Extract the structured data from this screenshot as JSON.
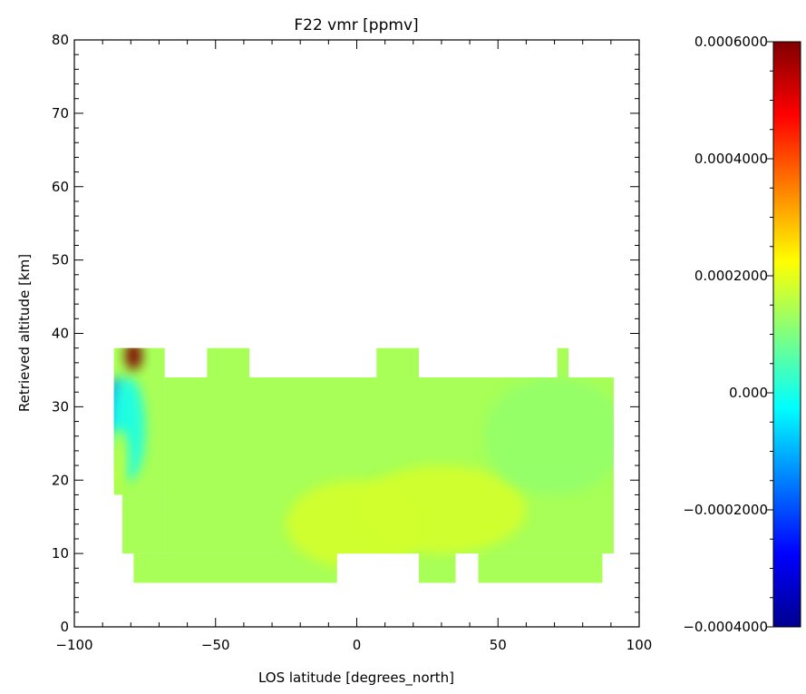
{
  "chart_data": {
    "type": "heatmap",
    "title": "F22 vmr [ppmv]",
    "xlabel": "LOS latitude [degrees_north]",
    "ylabel": "Retrieved altitude [km]",
    "xlim": [
      -100,
      100
    ],
    "ylim": [
      0,
      80
    ],
    "x_ticks": [
      -100,
      -50,
      0,
      50,
      100
    ],
    "y_ticks": [
      0,
      10,
      20,
      30,
      40,
      50,
      60,
      70,
      80
    ],
    "x_tick_labels": [
      "−100",
      "−50",
      "0",
      "50",
      "100"
    ],
    "y_tick_labels": [
      "0",
      "10",
      "20",
      "30",
      "40",
      "50",
      "60",
      "70",
      "80"
    ],
    "colorbar": {
      "range": [
        -0.0004,
        0.0006
      ],
      "ticks": [
        -0.0004,
        -0.0002,
        0.0,
        0.0002,
        0.0004,
        0.0006
      ],
      "tick_labels": [
        "−0.0004000",
        "−0.0002000",
        "0.000",
        "0.0002000",
        "0.0004000",
        "0.0006000"
      ],
      "colormap": "jet"
    },
    "baseline_value": 0.00014,
    "coverage": [
      {
        "x": [
          -86,
          -68
        ],
        "y": [
          18,
          38
        ]
      },
      {
        "x": [
          -83,
          -68
        ],
        "y": [
          10,
          18
        ]
      },
      {
        "x": [
          -79,
          -7
        ],
        "y": [
          6,
          10
        ]
      },
      {
        "x": [
          -68,
          91
        ],
        "y": [
          10,
          34
        ]
      },
      {
        "x": [
          -53,
          -38
        ],
        "y": [
          34,
          38
        ]
      },
      {
        "x": [
          7,
          22
        ],
        "y": [
          34,
          38
        ]
      },
      {
        "x": [
          71,
          75
        ],
        "y": [
          34,
          38
        ]
      },
      {
        "x": [
          -7,
          22
        ],
        "y": [
          10,
          10.01
        ]
      },
      {
        "x": [
          22,
          35
        ],
        "y": [
          6,
          10
        ]
      },
      {
        "x": [
          43,
          87
        ],
        "y": [
          6,
          10
        ]
      }
    ],
    "anomalies": [
      {
        "x": -85,
        "y": 30,
        "value": -0.00012,
        "sx": 3,
        "sy": 4
      },
      {
        "x": -81,
        "y": 27,
        "value": 0.0,
        "sx": 6,
        "sy": 7
      },
      {
        "x": -79,
        "y": 37,
        "value": 0.0006,
        "sx": 3,
        "sy": 2
      },
      {
        "x": -84,
        "y": 23,
        "value": 0.00017,
        "sx": 3,
        "sy": 4
      },
      {
        "x": 0,
        "y": 14,
        "value": 0.00018,
        "sx": 25,
        "sy": 6
      },
      {
        "x": 30,
        "y": 16,
        "value": 0.00018,
        "sx": 30,
        "sy": 6
      },
      {
        "x": 70,
        "y": 26,
        "value": 0.00012,
        "sx": 25,
        "sy": 8
      }
    ]
  }
}
